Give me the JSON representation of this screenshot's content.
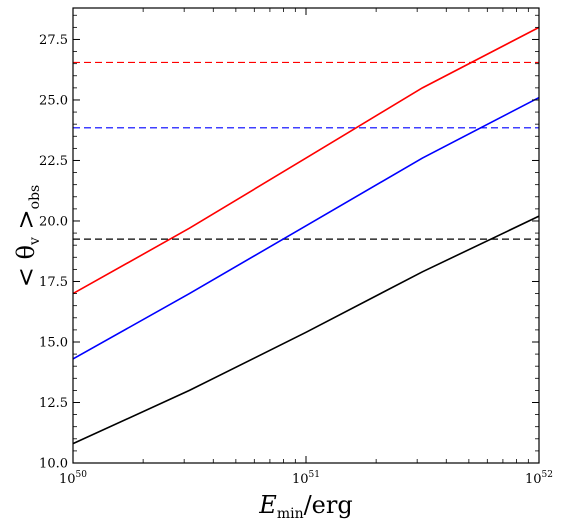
{
  "chart_data": {
    "type": "line",
    "xscale": "log",
    "xlim": [
      1e+50,
      1e+52
    ],
    "ylim": [
      10.0,
      28.8
    ],
    "xlabel": {
      "main": "E",
      "sub": "min",
      "suffix": "/erg"
    },
    "ylabel": {
      "prefix": "< θ",
      "sub1": "v",
      "mid": " >",
      "sub2": "obs"
    },
    "xticks": [
      {
        "value": 1e+50,
        "base": "10",
        "exp": "50"
      },
      {
        "value": 1e+51,
        "base": "10",
        "exp": "51"
      },
      {
        "value": 1e+52,
        "base": "10",
        "exp": "52"
      }
    ],
    "yticks": [
      {
        "value": 10.0,
        "label": "10.0"
      },
      {
        "value": 12.5,
        "label": "12.5"
      },
      {
        "value": 15.0,
        "label": "15.0"
      },
      {
        "value": 17.5,
        "label": "17.5"
      },
      {
        "value": 20.0,
        "label": "20.0"
      },
      {
        "value": 22.5,
        "label": "22.5"
      },
      {
        "value": 25.0,
        "label": "25.0"
      },
      {
        "value": 27.5,
        "label": "27.5"
      }
    ],
    "series": [
      {
        "color": "#ff0000",
        "style": "solid",
        "x": [
          1e+50,
          3.16e+50,
          1e+51,
          3.16e+51,
          1e+52
        ],
        "y": [
          17.0,
          19.7,
          22.6,
          25.5,
          28.0
        ]
      },
      {
        "color": "#0000ff",
        "style": "solid",
        "x": [
          1e+50,
          3.16e+50,
          1e+51,
          3.16e+51,
          1e+52
        ],
        "y": [
          14.3,
          17.0,
          19.8,
          22.6,
          25.1
        ]
      },
      {
        "color": "#000000",
        "style": "solid",
        "x": [
          1e+50,
          3.16e+50,
          1e+51,
          3.16e+51,
          1e+52
        ],
        "y": [
          10.8,
          13.0,
          15.4,
          17.9,
          20.2
        ]
      }
    ],
    "hlines": [
      {
        "y": 26.55,
        "color": "#ff0000",
        "style": "dashed"
      },
      {
        "y": 23.85,
        "color": "#0000ff",
        "style": "dashed"
      },
      {
        "y": 19.25,
        "color": "#000000",
        "style": "dashed"
      }
    ],
    "grid": false
  }
}
